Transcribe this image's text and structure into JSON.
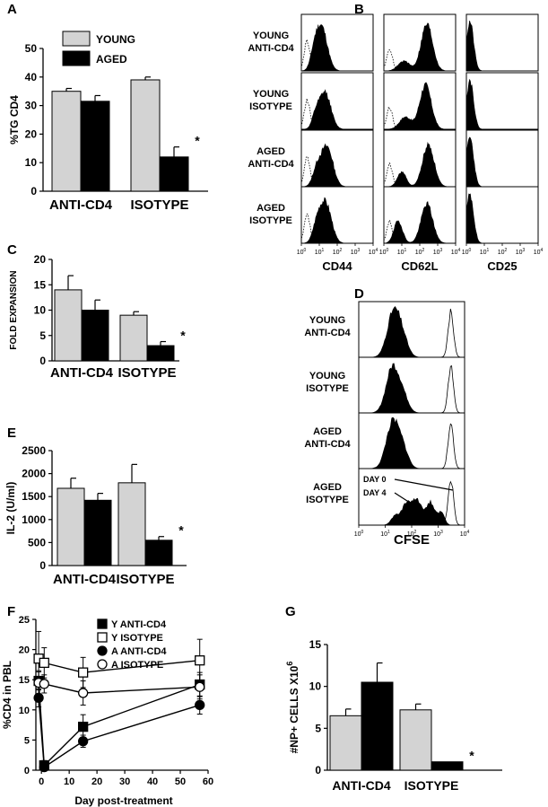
{
  "colors": {
    "young": "#d3d3d3",
    "aged": "#000000",
    "axis": "#000000"
  },
  "chart_data": [
    {
      "panel": "A",
      "type": "bar",
      "ylabel": "%TG CD4",
      "ylim": [
        0,
        50
      ],
      "yticks": [
        "0",
        "10",
        "20",
        "30",
        "40",
        "50"
      ],
      "categories": [
        "ANTI-CD4",
        "ISOTYPE"
      ],
      "legend": [
        "YOUNG",
        "AGED"
      ],
      "series": [
        {
          "name": "YOUNG",
          "values": [
            35,
            39
          ],
          "errors": [
            1,
            1
          ]
        },
        {
          "name": "AGED",
          "values": [
            31.5,
            12
          ],
          "errors": [
            2,
            3.5
          ]
        }
      ],
      "annotations": [
        {
          "category": "ISOTYPE",
          "series": "AGED",
          "label": "*"
        }
      ]
    },
    {
      "panel": "C",
      "type": "bar",
      "ylabel": "FOLD EXPANSION",
      "ylim": [
        0,
        20
      ],
      "yticks": [
        "0",
        "5",
        "10",
        "15",
        "20"
      ],
      "categories": [
        "ANTI-CD4",
        "ISOTYPE"
      ],
      "series": [
        {
          "name": "YOUNG",
          "values": [
            14,
            9
          ],
          "errors": [
            2.8,
            0.7
          ]
        },
        {
          "name": "AGED",
          "values": [
            10,
            3
          ],
          "errors": [
            2,
            0.8
          ]
        }
      ],
      "annotations": [
        {
          "category": "ISOTYPE",
          "series": "AGED",
          "label": "*"
        }
      ]
    },
    {
      "panel": "E",
      "type": "bar",
      "ylabel": "IL-2 (U/ml)",
      "ylim": [
        0,
        2500
      ],
      "yticks": [
        "0",
        "500",
        "1000",
        "1500",
        "2000",
        "2500"
      ],
      "categories": [
        "ANTI-CD4",
        "ISOTYPE"
      ],
      "series": [
        {
          "name": "YOUNG",
          "values": [
            1680,
            1800
          ],
          "errors": [
            220,
            400
          ]
        },
        {
          "name": "AGED",
          "values": [
            1420,
            550
          ],
          "errors": [
            150,
            80
          ]
        }
      ],
      "annotations": [
        {
          "category": "ISOTYPE",
          "series": "AGED",
          "label": "*"
        }
      ]
    },
    {
      "panel": "F",
      "type": "line",
      "xlabel": "Day post-treatment",
      "ylabel": "%CD4 in PBL",
      "xlim": [
        -2,
        60
      ],
      "ylim": [
        0,
        25
      ],
      "xticks": [
        "0",
        "10",
        "20",
        "30",
        "40",
        "50",
        "60"
      ],
      "yticks": [
        "0",
        "5",
        "10",
        "15",
        "20",
        "25"
      ],
      "legend": [
        "Y ANTI-CD4",
        "Y ISOTYPE",
        "A ANTI-CD4",
        "A ISOTYPE"
      ],
      "series": [
        {
          "name": "Y ANTI-CD4",
          "marker": "square-filled",
          "x": [
            -1,
            1,
            15,
            57
          ],
          "y": [
            14.8,
            0.8,
            7.2,
            14.2
          ],
          "err": [
            1.5,
            0.8,
            2,
            2
          ]
        },
        {
          "name": "Y ISOTYPE",
          "marker": "square-open",
          "x": [
            -1,
            1,
            15,
            57
          ],
          "y": [
            18.5,
            17.8,
            16.2,
            18.2
          ],
          "err": [
            4.5,
            2.5,
            2.5,
            3.5
          ]
        },
        {
          "name": "A ANTI-CD4",
          "marker": "circle-filled",
          "x": [
            -1,
            1,
            15,
            57
          ],
          "y": [
            12,
            0.5,
            4.8,
            10.8
          ],
          "err": [
            1.5,
            0.5,
            1,
            1.5
          ]
        },
        {
          "name": "A ISOTYPE",
          "marker": "circle-open",
          "x": [
            -1,
            1,
            15,
            57
          ],
          "y": [
            14.5,
            14.3,
            12.8,
            13.8
          ],
          "err": [
            2,
            1.5,
            2,
            2
          ]
        }
      ]
    },
    {
      "panel": "G",
      "type": "bar",
      "ylabel": "#NP+ CELLS X10",
      "ylabel_sup": "6",
      "ylim": [
        0,
        15
      ],
      "yticks": [
        "0",
        "5",
        "10",
        "15"
      ],
      "categories": [
        "ANTI-CD4",
        "ISOTYPE"
      ],
      "series": [
        {
          "name": "YOUNG",
          "values": [
            6.5,
            7.2
          ],
          "errors": [
            0.8,
            0.7
          ]
        },
        {
          "name": "AGED",
          "values": [
            10.5,
            1
          ],
          "errors": [
            2.3,
            0
          ]
        }
      ],
      "annotations": [
        {
          "category": "ISOTYPE",
          "series": "AGED",
          "label": "*"
        }
      ]
    },
    {
      "panel": "B",
      "type": "histogram-grid",
      "rows": [
        "YOUNG\nANTI-CD4",
        "YOUNG\nISOTYPE",
        "AGED\nANTI-CD4",
        "AGED\nISOTYPE"
      ],
      "columns": [
        "CD44",
        "CD62L",
        "CD25"
      ],
      "xticks": [
        "10^0",
        "10^1",
        "10^2",
        "10^3",
        "10^4"
      ]
    },
    {
      "panel": "D",
      "type": "histogram-grid",
      "rows": [
        "YOUNG\nANTI-CD4",
        "YOUNG\nISOTYPE",
        "AGED\nANTI-CD4",
        "AGED\nISOTYPE"
      ],
      "columns": [
        "CFSE"
      ],
      "xticks": [
        "10^0",
        "10^1",
        "10^2",
        "10^3",
        "10^4"
      ],
      "annotations": [
        "DAY 0",
        "DAY 4"
      ]
    }
  ]
}
